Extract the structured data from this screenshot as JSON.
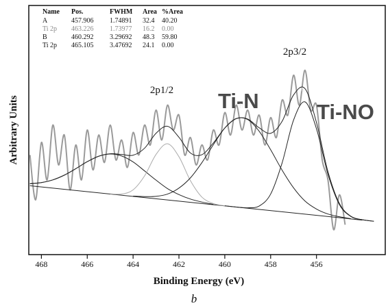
{
  "chart_data": {
    "type": "line",
    "xlabel": "Binding Energy (eV)",
    "ylabel": "Arbitrary Units",
    "caption": "b",
    "xlim": [
      468.55,
      453.0
    ],
    "xticks": [
      468,
      466,
      464,
      462,
      460,
      458,
      456
    ],
    "ylim": [
      0,
      100
    ],
    "annotations": [
      "2p1/2",
      "Ti-N",
      "B",
      "2p3/2",
      "A",
      "Ti-NO"
    ],
    "table": {
      "header": [
        "Name",
        "Pos.",
        "FWHM",
        "Area",
        "%Area"
      ],
      "rows": [
        [
          "A",
          "457.906",
          "1.74891",
          "32.4",
          "40.20"
        ],
        [
          "Ti 2p",
          "463.226",
          "1.73977",
          "16.2",
          "0.00"
        ],
        [
          "B",
          "460.292",
          "3.29692",
          "48.3",
          "59.80"
        ],
        [
          "Ti 2p",
          "465.105",
          "3.47692",
          "24.1",
          "0.00"
        ]
      ],
      "row_colors": [
        "#111111",
        "#888888",
        "#111111",
        "#111111"
      ]
    },
    "series": [
      {
        "color": "#9a9a9a",
        "width": 2,
        "x": [
          468.5,
          468.25,
          468,
          467.75,
          467.5,
          467.25,
          467,
          466.75,
          466.5,
          466.25,
          466,
          465.75,
          465.5,
          465.25,
          465,
          464.75,
          464.5,
          464.25,
          464,
          463.75,
          463.5,
          463.25,
          463,
          462.75,
          462.5,
          462.25,
          462,
          461.75,
          461.5,
          461.25,
          461,
          460.75,
          460.5,
          460.25,
          460,
          459.75,
          459.5,
          459.25,
          459,
          458.75,
          458.5,
          458.25,
          458,
          457.75,
          457.5,
          457.25,
          457,
          456.75,
          456.5,
          456.25,
          456,
          455.75,
          455.5,
          455.25,
          455,
          454.75
        ],
        "values": [
          40,
          22,
          45,
          30,
          52,
          36,
          48,
          26,
          44,
          30,
          50,
          34,
          48,
          37,
          52,
          38,
          46,
          35,
          49,
          40,
          52,
          44,
          58,
          46,
          60,
          50,
          56,
          40,
          47,
          36,
          44,
          38,
          50,
          44,
          57,
          48,
          60,
          50,
          58,
          48,
          56,
          44,
          55,
          47,
          62,
          56,
          72,
          60,
          74,
          58,
          60,
          38,
          30,
          10,
          24,
          12
        ]
      },
      {
        "color": "#222222",
        "width": 1,
        "x": [
          468.5,
          454.0
        ],
        "values": [
          27.65,
          13.85
        ]
      },
      {
        "color": "#222222",
        "width": 1,
        "x": [
          468.5,
          468,
          467.5,
          467,
          466.5,
          466,
          465.5,
          465,
          464.5,
          464,
          463.5,
          463,
          462.5,
          462,
          461.5,
          461,
          460.5
        ],
        "values": [
          28.4,
          28.9,
          30.0,
          31.9,
          34.5,
          37.3,
          39.5,
          40.4,
          39.6,
          37.2,
          33.6,
          29.9,
          26.5,
          24.1,
          22.3,
          21.1,
          20.2
        ]
      },
      {
        "color": "#aaaaaa",
        "width": 1,
        "x": [
          465,
          464.5,
          464,
          463.5,
          463,
          462.5,
          462,
          461.5,
          461,
          460.5,
          460
        ],
        "values": [
          24.4,
          24.3,
          26.0,
          31.6,
          40.2,
          44.5,
          39.3,
          29.7,
          23.1,
          20.5,
          19.6
        ]
      },
      {
        "color": "#222222",
        "width": 1,
        "x": [
          464,
          463.5,
          463,
          462.5,
          462,
          461.5,
          461,
          460.5,
          460,
          459.5,
          459,
          458.5,
          458,
          457.5,
          457,
          456.5,
          456,
          455.5,
          455,
          454.5
        ],
        "values": [
          23.5,
          23.3,
          23.4,
          24.3,
          26.7,
          30.8,
          36.9,
          44.1,
          50.8,
          54.6,
          54.2,
          49.5,
          42.1,
          33.9,
          26.8,
          21.5,
          18.3,
          16.3,
          15.2,
          14.4
        ]
      },
      {
        "color": "#222222",
        "width": 1,
        "x": [
          460,
          459.5,
          459,
          458.5,
          458,
          457.5,
          457,
          456.5,
          456,
          455.5,
          455,
          454.5,
          454,
          453.5
        ],
        "values": [
          19.6,
          19.1,
          18.8,
          19.5,
          24.3,
          36.8,
          54.0,
          61.3,
          50.5,
          32.3,
          20.1,
          15.3,
          14.0,
          13.4
        ]
      },
      {
        "color": "#222222",
        "width": 1,
        "x": [
          468.5,
          468,
          467.5,
          467,
          466.5,
          466,
          465.5,
          465,
          464.5,
          464,
          463.5,
          463,
          462.5,
          462,
          461.5,
          461,
          460.5,
          460,
          459.5,
          459,
          458.5,
          458,
          457.5,
          457,
          456.5,
          456,
          455.5,
          455,
          454.5,
          454,
          453.5
        ],
        "values": [
          28.5,
          28.9,
          30.0,
          31.9,
          34.5,
          37.3,
          39.5,
          40.5,
          40.2,
          39.9,
          42.7,
          48.7,
          51.5,
          47.1,
          40.8,
          40.1,
          44.8,
          50.8,
          54.6,
          54.4,
          50.9,
          48.7,
          53.5,
          64.1,
          66.6,
          53.0,
          33.3,
          20.5,
          15.4,
          14.0,
          13.4
        ]
      }
    ]
  }
}
